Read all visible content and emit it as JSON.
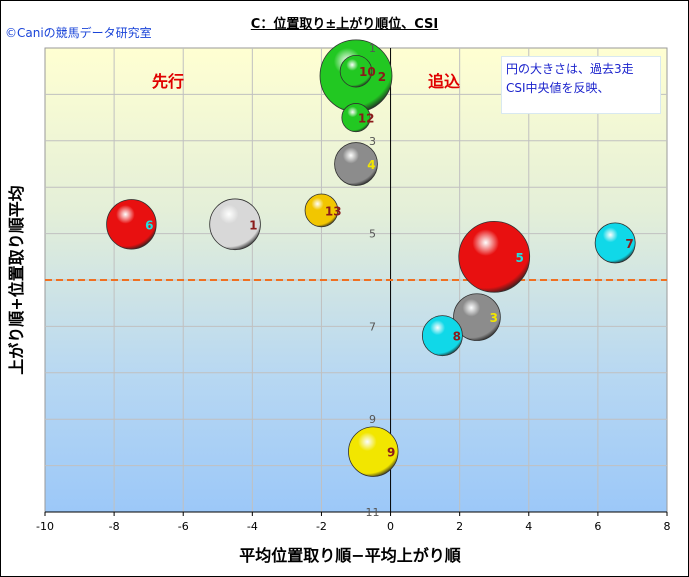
{
  "copyright": "©Caniの競馬データ研究室",
  "chart_data": {
    "type": "scatter",
    "title": "C：位置取り±上がり順位、CSI",
    "xlabel": "平均位置取り順−平均上がり順",
    "ylabel": "上がり順+位置取り順平均",
    "xlim": [
      -10,
      8
    ],
    "ylim": [
      11,
      1
    ],
    "xticks": [
      -10,
      -8,
      -6,
      -4,
      -2,
      0,
      2,
      4,
      6,
      8
    ],
    "yticks": [
      1,
      3,
      5,
      7,
      9,
      11
    ],
    "grid": true,
    "reference_line_y": 6,
    "annotations": {
      "left_region": "先行",
      "right_region": "追込",
      "note_line1": "円の大きさは、過去3走",
      "note_line2": "CSI中央値を反映、"
    },
    "points": [
      {
        "label": "1",
        "x": -4.5,
        "y": 4.8,
        "size": 0.62,
        "color": "#d8d8d8",
        "label_color": "#8b1a1a"
      },
      {
        "label": "2",
        "x": -1.0,
        "y": 1.6,
        "size": 1.0,
        "color": "#22c822",
        "label_color": "#8b1a1a"
      },
      {
        "label": "3",
        "x": 2.5,
        "y": 6.8,
        "size": 0.55,
        "color": "#8c8c8c",
        "label_color": "#f2e600"
      },
      {
        "label": "4",
        "x": -1.0,
        "y": 3.5,
        "size": 0.48,
        "color": "#8c8c8c",
        "label_color": "#f2e600"
      },
      {
        "label": "5",
        "x": 3.0,
        "y": 5.5,
        "size": 0.98,
        "color": "#e81010",
        "label_color": "#20e0e0"
      },
      {
        "label": "6",
        "x": -7.5,
        "y": 4.8,
        "size": 0.6,
        "color": "#e81010",
        "label_color": "#20e0e0"
      },
      {
        "label": "7",
        "x": 6.5,
        "y": 5.2,
        "size": 0.43,
        "color": "#10d8e8",
        "label_color": "#8b1a1a"
      },
      {
        "label": "8",
        "x": 1.5,
        "y": 7.2,
        "size": 0.43,
        "color": "#10d8e8",
        "label_color": "#8b1a1a"
      },
      {
        "label": "9",
        "x": -0.5,
        "y": 9.7,
        "size": 0.6,
        "color": "#f2e600",
        "label_color": "#8b1a1a"
      },
      {
        "label": "10",
        "x": -1.0,
        "y": 1.5,
        "size": 0.28,
        "color": "#22c822",
        "label_color": "#8b1a1a"
      },
      {
        "label": "12",
        "x": -1.0,
        "y": 2.5,
        "size": 0.22,
        "color": "#22c822",
        "label_color": "#8b1a1a"
      },
      {
        "label": "13",
        "x": -2.0,
        "y": 4.5,
        "size": 0.3,
        "color": "#f2c600",
        "label_color": "#8b1a1a"
      }
    ]
  }
}
